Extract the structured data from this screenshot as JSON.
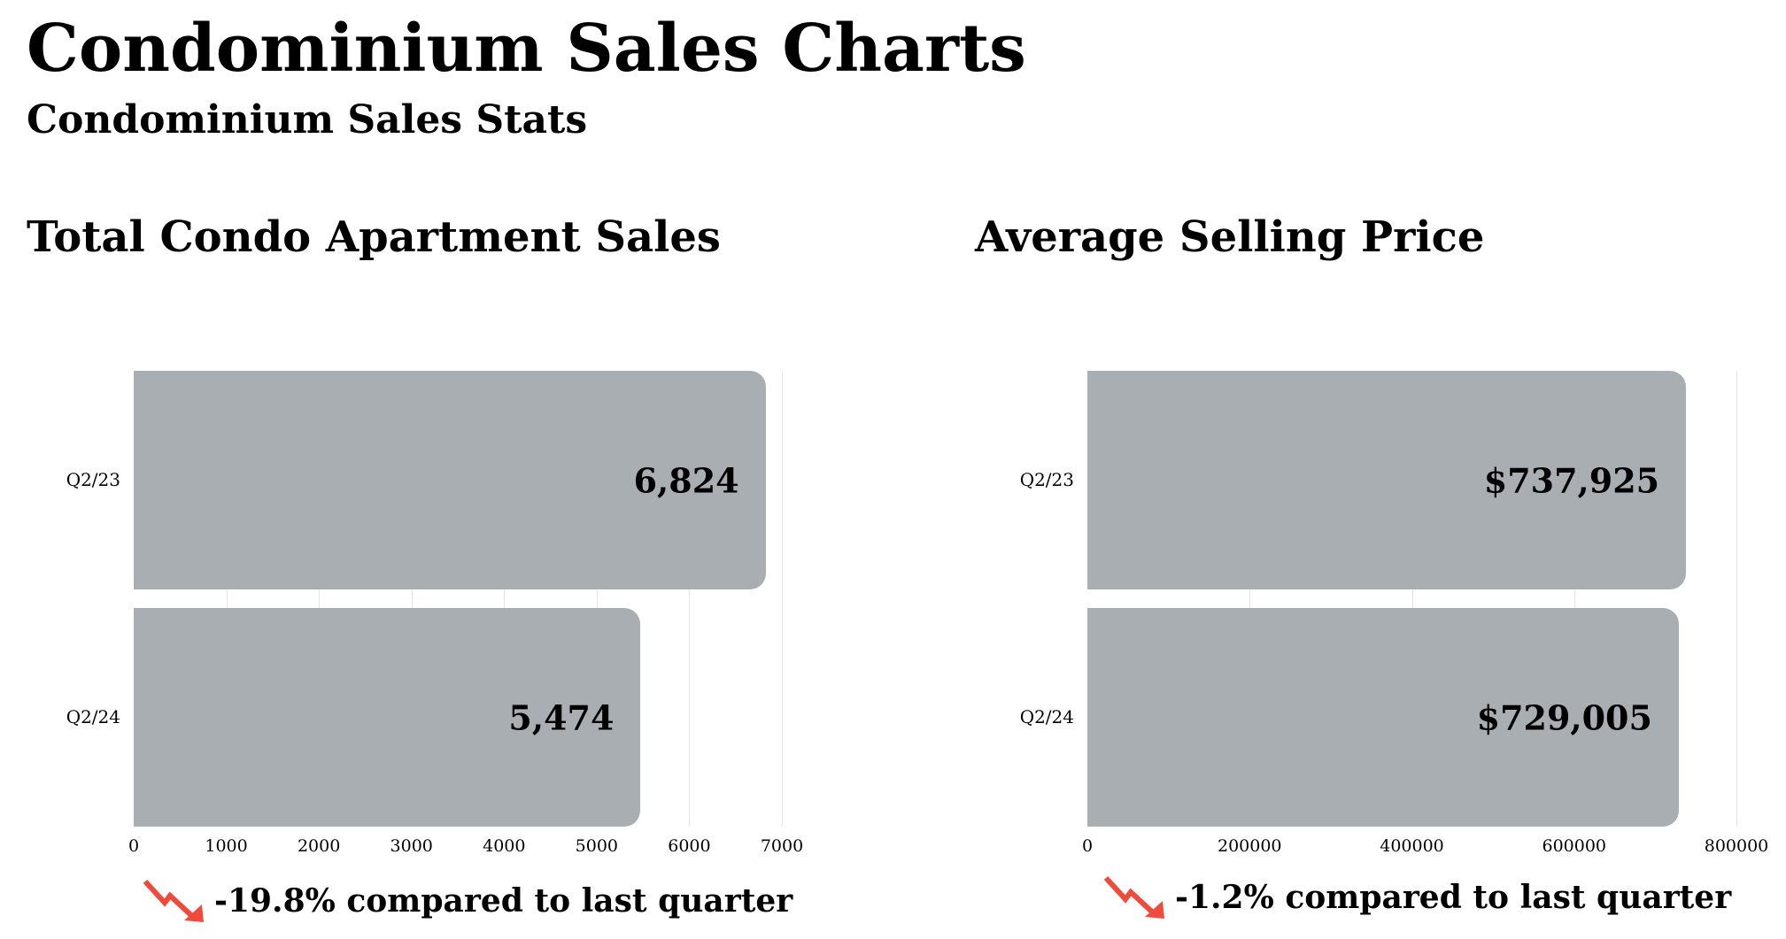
{
  "title": "Condominium Sales Charts",
  "subtitle": "Condominium Sales Stats",
  "colors": {
    "bar": "#a9aeb2",
    "down": "#f04a3a"
  },
  "chart_data": [
    {
      "type": "bar",
      "orientation": "horizontal",
      "title": "Total Condo Apartment Sales",
      "categories": [
        "Q2/23",
        "Q2/24"
      ],
      "values": [
        6824,
        5474
      ],
      "labels": [
        "6,824",
        "5,474"
      ],
      "xlim": [
        0,
        7000
      ],
      "xticks": [
        "0",
        "1000",
        "2000",
        "3000",
        "4000",
        "5000",
        "6000",
        "7000"
      ],
      "grid": true,
      "note": "-19.8% compared to last quarter"
    },
    {
      "type": "bar",
      "orientation": "horizontal",
      "title": "Average Selling Price",
      "categories": [
        "Q2/23",
        "Q2/24"
      ],
      "values": [
        737925,
        729005
      ],
      "labels": [
        "$737,925",
        "$729,005"
      ],
      "xlim": [
        0,
        800000
      ],
      "xticks": [
        "0",
        "200000",
        "400000",
        "600000",
        "800000"
      ],
      "grid": true,
      "note": "-1.2% compared to last quarter"
    }
  ]
}
